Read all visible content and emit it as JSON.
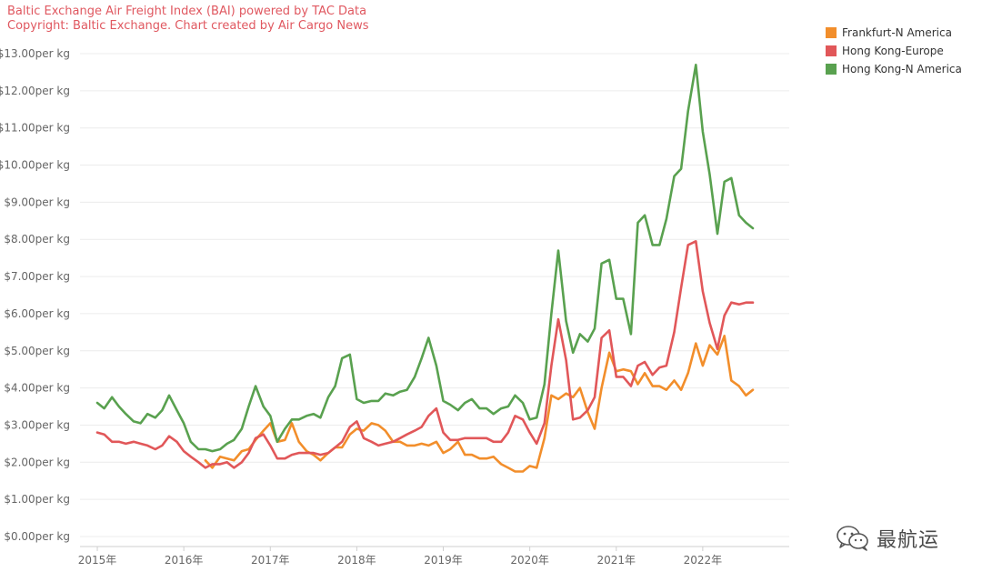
{
  "header": {
    "title": "Baltic Exchange Air Freight Index (BAI) powered by TAC Data",
    "subtitle": "Copyright: Baltic Exchange. Chart created by Air Cargo News"
  },
  "watermark": {
    "text": "最航运"
  },
  "chart_data": {
    "type": "line",
    "title": "Baltic Exchange Air Freight Index (BAI) powered by TAC Data",
    "subtitle": "Copyright: Baltic Exchange. Chart created by Air Cargo News",
    "ylim": [
      0,
      13
    ],
    "xlim": [
      2014.8,
      2023.0
    ],
    "y_ticks": [
      0,
      1,
      2,
      3,
      4,
      5,
      6,
      7,
      8,
      9,
      10,
      11,
      12,
      13
    ],
    "y_tick_labels": [
      "$0.00per kg",
      "$1.00per kg",
      "$2.00per kg",
      "$3.00per kg",
      "$4.00per kg",
      "$5.00per kg",
      "$6.00per kg",
      "$7.00per kg",
      "$8.00per kg",
      "$9.00per kg",
      "$10.00per kg",
      "$11.00per kg",
      "$12.00per kg",
      "$13.00per kg"
    ],
    "x_ticks": [
      2015,
      2016,
      2017,
      2018,
      2019,
      2020,
      2021,
      2022
    ],
    "x_tick_labels": [
      "2015年",
      "2016年",
      "2017年",
      "2018年",
      "2019年",
      "2020年",
      "2021年",
      "2022年"
    ],
    "grid": true,
    "legend_position": "top-right",
    "series": [
      {
        "name": "Frankfurt-N America",
        "color": "#f28e2b",
        "points": [
          [
            2016.25,
            2.05
          ],
          [
            2016.33,
            1.85
          ],
          [
            2016.42,
            2.15
          ],
          [
            2016.5,
            2.1
          ],
          [
            2016.58,
            2.05
          ],
          [
            2016.67,
            2.3
          ],
          [
            2016.75,
            2.35
          ],
          [
            2016.83,
            2.6
          ],
          [
            2016.92,
            2.85
          ],
          [
            2017.0,
            3.05
          ],
          [
            2017.08,
            2.55
          ],
          [
            2017.17,
            2.6
          ],
          [
            2017.25,
            3.05
          ],
          [
            2017.33,
            2.55
          ],
          [
            2017.42,
            2.3
          ],
          [
            2017.5,
            2.2
          ],
          [
            2017.58,
            2.05
          ],
          [
            2017.67,
            2.25
          ],
          [
            2017.75,
            2.4
          ],
          [
            2017.83,
            2.4
          ],
          [
            2017.92,
            2.75
          ],
          [
            2018.0,
            2.9
          ],
          [
            2018.08,
            2.85
          ],
          [
            2018.17,
            3.05
          ],
          [
            2018.25,
            3.0
          ],
          [
            2018.33,
            2.85
          ],
          [
            2018.42,
            2.55
          ],
          [
            2018.5,
            2.55
          ],
          [
            2018.58,
            2.45
          ],
          [
            2018.67,
            2.45
          ],
          [
            2018.75,
            2.5
          ],
          [
            2018.83,
            2.45
          ],
          [
            2018.92,
            2.55
          ],
          [
            2019.0,
            2.25
          ],
          [
            2019.08,
            2.35
          ],
          [
            2019.17,
            2.55
          ],
          [
            2019.25,
            2.2
          ],
          [
            2019.33,
            2.2
          ],
          [
            2019.42,
            2.1
          ],
          [
            2019.5,
            2.1
          ],
          [
            2019.58,
            2.15
          ],
          [
            2019.67,
            1.95
          ],
          [
            2019.75,
            1.85
          ],
          [
            2019.83,
            1.75
          ],
          [
            2019.92,
            1.75
          ],
          [
            2020.0,
            1.9
          ],
          [
            2020.08,
            1.85
          ],
          [
            2020.17,
            2.65
          ],
          [
            2020.25,
            3.8
          ],
          [
            2020.33,
            3.7
          ],
          [
            2020.42,
            3.85
          ],
          [
            2020.5,
            3.75
          ],
          [
            2020.58,
            4.0
          ],
          [
            2020.67,
            3.35
          ],
          [
            2020.75,
            2.9
          ],
          [
            2020.83,
            4.0
          ],
          [
            2020.92,
            4.95
          ],
          [
            2021.0,
            4.45
          ],
          [
            2021.08,
            4.5
          ],
          [
            2021.17,
            4.45
          ],
          [
            2021.25,
            4.1
          ],
          [
            2021.33,
            4.4
          ],
          [
            2021.42,
            4.05
          ],
          [
            2021.5,
            4.05
          ],
          [
            2021.58,
            3.95
          ],
          [
            2021.67,
            4.2
          ],
          [
            2021.75,
            3.95
          ],
          [
            2021.83,
            4.4
          ],
          [
            2021.92,
            5.2
          ],
          [
            2022.0,
            4.6
          ],
          [
            2022.08,
            5.15
          ],
          [
            2022.17,
            4.9
          ],
          [
            2022.25,
            5.4
          ],
          [
            2022.33,
            4.2
          ],
          [
            2022.42,
            4.05
          ],
          [
            2022.5,
            3.8
          ],
          [
            2022.58,
            3.95
          ]
        ]
      },
      {
        "name": "Hong Kong-Europe",
        "color": "#e15759",
        "points": [
          [
            2015.0,
            2.8
          ],
          [
            2015.08,
            2.75
          ],
          [
            2015.17,
            2.55
          ],
          [
            2015.25,
            2.55
          ],
          [
            2015.33,
            2.5
          ],
          [
            2015.42,
            2.55
          ],
          [
            2015.5,
            2.5
          ],
          [
            2015.58,
            2.45
          ],
          [
            2015.67,
            2.35
          ],
          [
            2015.75,
            2.45
          ],
          [
            2015.83,
            2.7
          ],
          [
            2015.92,
            2.55
          ],
          [
            2016.0,
            2.3
          ],
          [
            2016.08,
            2.15
          ],
          [
            2016.17,
            2.0
          ],
          [
            2016.25,
            1.85
          ],
          [
            2016.33,
            1.95
          ],
          [
            2016.42,
            1.95
          ],
          [
            2016.5,
            2.0
          ],
          [
            2016.58,
            1.85
          ],
          [
            2016.67,
            2.0
          ],
          [
            2016.75,
            2.25
          ],
          [
            2016.83,
            2.65
          ],
          [
            2016.92,
            2.75
          ],
          [
            2017.0,
            2.45
          ],
          [
            2017.08,
            2.1
          ],
          [
            2017.17,
            2.1
          ],
          [
            2017.25,
            2.2
          ],
          [
            2017.33,
            2.25
          ],
          [
            2017.42,
            2.25
          ],
          [
            2017.5,
            2.25
          ],
          [
            2017.58,
            2.2
          ],
          [
            2017.67,
            2.25
          ],
          [
            2017.75,
            2.4
          ],
          [
            2017.83,
            2.55
          ],
          [
            2017.92,
            2.95
          ],
          [
            2018.0,
            3.1
          ],
          [
            2018.08,
            2.65
          ],
          [
            2018.17,
            2.55
          ],
          [
            2018.25,
            2.45
          ],
          [
            2018.33,
            2.5
          ],
          [
            2018.42,
            2.55
          ],
          [
            2018.5,
            2.65
          ],
          [
            2018.58,
            2.75
          ],
          [
            2018.67,
            2.85
          ],
          [
            2018.75,
            2.95
          ],
          [
            2018.83,
            3.25
          ],
          [
            2018.92,
            3.45
          ],
          [
            2019.0,
            2.8
          ],
          [
            2019.08,
            2.6
          ],
          [
            2019.17,
            2.6
          ],
          [
            2019.25,
            2.65
          ],
          [
            2019.33,
            2.65
          ],
          [
            2019.42,
            2.65
          ],
          [
            2019.5,
            2.65
          ],
          [
            2019.58,
            2.55
          ],
          [
            2019.67,
            2.55
          ],
          [
            2019.75,
            2.8
          ],
          [
            2019.83,
            3.25
          ],
          [
            2019.92,
            3.15
          ],
          [
            2020.0,
            2.8
          ],
          [
            2020.08,
            2.5
          ],
          [
            2020.17,
            3.05
          ],
          [
            2020.25,
            4.6
          ],
          [
            2020.33,
            5.85
          ],
          [
            2020.42,
            4.75
          ],
          [
            2020.5,
            3.15
          ],
          [
            2020.58,
            3.2
          ],
          [
            2020.67,
            3.4
          ],
          [
            2020.75,
            3.75
          ],
          [
            2020.83,
            5.35
          ],
          [
            2020.92,
            5.55
          ],
          [
            2021.0,
            4.3
          ],
          [
            2021.08,
            4.3
          ],
          [
            2021.17,
            4.05
          ],
          [
            2021.25,
            4.6
          ],
          [
            2021.33,
            4.7
          ],
          [
            2021.42,
            4.35
          ],
          [
            2021.5,
            4.55
          ],
          [
            2021.58,
            4.6
          ],
          [
            2021.67,
            5.5
          ],
          [
            2021.75,
            6.7
          ],
          [
            2021.83,
            7.85
          ],
          [
            2021.92,
            7.95
          ],
          [
            2022.0,
            6.6
          ],
          [
            2022.08,
            5.75
          ],
          [
            2022.17,
            5.05
          ],
          [
            2022.25,
            5.95
          ],
          [
            2022.33,
            6.3
          ],
          [
            2022.42,
            6.25
          ],
          [
            2022.5,
            6.3
          ],
          [
            2022.58,
            6.3
          ]
        ]
      },
      {
        "name": "Hong Kong-N America",
        "color": "#59a14f",
        "points": [
          [
            2015.0,
            3.6
          ],
          [
            2015.08,
            3.45
          ],
          [
            2015.17,
            3.75
          ],
          [
            2015.25,
            3.5
          ],
          [
            2015.33,
            3.3
          ],
          [
            2015.42,
            3.1
          ],
          [
            2015.5,
            3.05
          ],
          [
            2015.58,
            3.3
          ],
          [
            2015.67,
            3.2
          ],
          [
            2015.75,
            3.4
          ],
          [
            2015.83,
            3.8
          ],
          [
            2015.92,
            3.4
          ],
          [
            2016.0,
            3.05
          ],
          [
            2016.08,
            2.55
          ],
          [
            2016.17,
            2.35
          ],
          [
            2016.25,
            2.35
          ],
          [
            2016.33,
            2.3
          ],
          [
            2016.42,
            2.35
          ],
          [
            2016.5,
            2.5
          ],
          [
            2016.58,
            2.6
          ],
          [
            2016.67,
            2.9
          ],
          [
            2016.75,
            3.5
          ],
          [
            2016.83,
            4.05
          ],
          [
            2016.92,
            3.5
          ],
          [
            2017.0,
            3.25
          ],
          [
            2017.08,
            2.55
          ],
          [
            2017.17,
            2.9
          ],
          [
            2017.25,
            3.15
          ],
          [
            2017.33,
            3.15
          ],
          [
            2017.42,
            3.25
          ],
          [
            2017.5,
            3.3
          ],
          [
            2017.58,
            3.2
          ],
          [
            2017.67,
            3.75
          ],
          [
            2017.75,
            4.05
          ],
          [
            2017.83,
            4.8
          ],
          [
            2017.92,
            4.9
          ],
          [
            2018.0,
            3.7
          ],
          [
            2018.08,
            3.6
          ],
          [
            2018.17,
            3.65
          ],
          [
            2018.25,
            3.65
          ],
          [
            2018.33,
            3.85
          ],
          [
            2018.42,
            3.8
          ],
          [
            2018.5,
            3.9
          ],
          [
            2018.58,
            3.95
          ],
          [
            2018.67,
            4.3
          ],
          [
            2018.75,
            4.8
          ],
          [
            2018.83,
            5.35
          ],
          [
            2018.92,
            4.6
          ],
          [
            2019.0,
            3.65
          ],
          [
            2019.08,
            3.55
          ],
          [
            2019.17,
            3.4
          ],
          [
            2019.25,
            3.6
          ],
          [
            2019.33,
            3.7
          ],
          [
            2019.42,
            3.45
          ],
          [
            2019.5,
            3.45
          ],
          [
            2019.58,
            3.3
          ],
          [
            2019.67,
            3.45
          ],
          [
            2019.75,
            3.5
          ],
          [
            2019.83,
            3.8
          ],
          [
            2019.92,
            3.6
          ],
          [
            2020.0,
            3.15
          ],
          [
            2020.08,
            3.2
          ],
          [
            2020.17,
            4.1
          ],
          [
            2020.25,
            6.0
          ],
          [
            2020.33,
            7.7
          ],
          [
            2020.42,
            5.8
          ],
          [
            2020.5,
            4.95
          ],
          [
            2020.58,
            5.45
          ],
          [
            2020.67,
            5.25
          ],
          [
            2020.75,
            5.6
          ],
          [
            2020.83,
            7.35
          ],
          [
            2020.92,
            7.45
          ],
          [
            2021.0,
            6.4
          ],
          [
            2021.08,
            6.4
          ],
          [
            2021.17,
            5.45
          ],
          [
            2021.25,
            8.45
          ],
          [
            2021.33,
            8.65
          ],
          [
            2021.42,
            7.85
          ],
          [
            2021.5,
            7.85
          ],
          [
            2021.58,
            8.55
          ],
          [
            2021.67,
            9.7
          ],
          [
            2021.75,
            9.9
          ],
          [
            2021.83,
            11.45
          ],
          [
            2021.92,
            12.7
          ],
          [
            2022.0,
            10.9
          ],
          [
            2022.08,
            9.75
          ],
          [
            2022.17,
            8.15
          ],
          [
            2022.25,
            9.55
          ],
          [
            2022.33,
            9.65
          ],
          [
            2022.42,
            8.65
          ],
          [
            2022.5,
            8.45
          ],
          [
            2022.58,
            8.3
          ]
        ]
      }
    ]
  }
}
